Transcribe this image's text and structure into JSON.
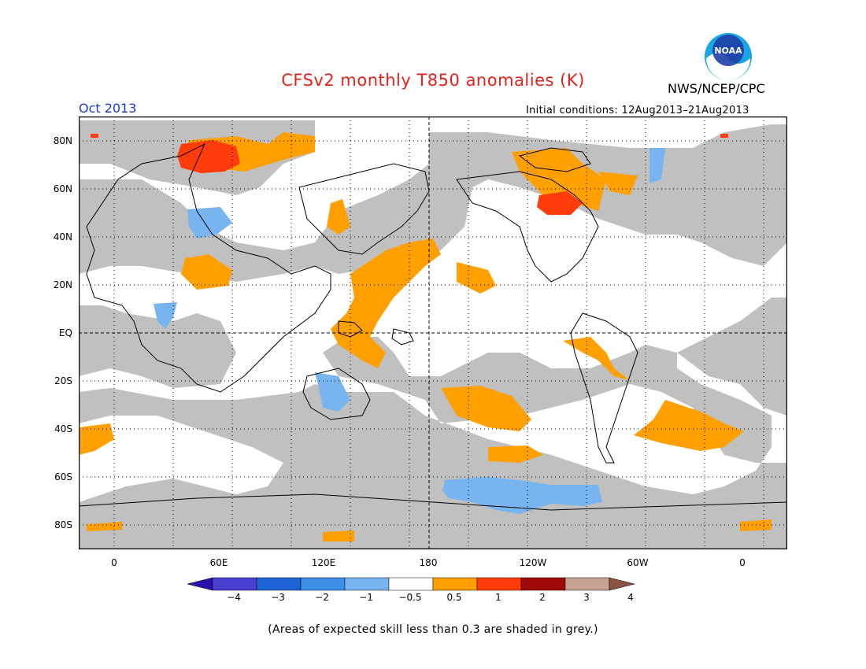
{
  "title": "CFSv2 monthly T850 anomalies (K)",
  "agency": "NWS/NCEP/CPC",
  "logo_text": "NOAA",
  "forecast_month": "Oct 2013",
  "initial_conditions": "Initial conditions: 12Aug2013–21Aug2013",
  "footnote": "(Areas of expected skill less than 0.3 are shaded in grey.)",
  "lat_labels": [
    "80N",
    "60N",
    "40N",
    "20N",
    "EQ",
    "20S",
    "40S",
    "60S",
    "80S"
  ],
  "lon_labels": [
    "0",
    "60E",
    "120E",
    "180",
    "120W",
    "60W",
    "0"
  ],
  "colorbar": {
    "labels": [
      "−4",
      "−3",
      "−2",
      "−1",
      "−0.5",
      "0.5",
      "1",
      "2",
      "3",
      "4"
    ],
    "colors": [
      "#2a0fa8",
      "#4a3fd0",
      "#1f63d6",
      "#3d8fe8",
      "#78b4ef",
      "#ffffff",
      "#ffa000",
      "#ff3c0a",
      "#a00a0a",
      "#c7a293",
      "#8a5240"
    ]
  },
  "colors": {
    "grey_low_skill": "#c0c0c0",
    "warm_05_1": "#ffa000",
    "warm_1_2": "#ff3c0a",
    "cool_05_1": "#78b4ef"
  }
}
